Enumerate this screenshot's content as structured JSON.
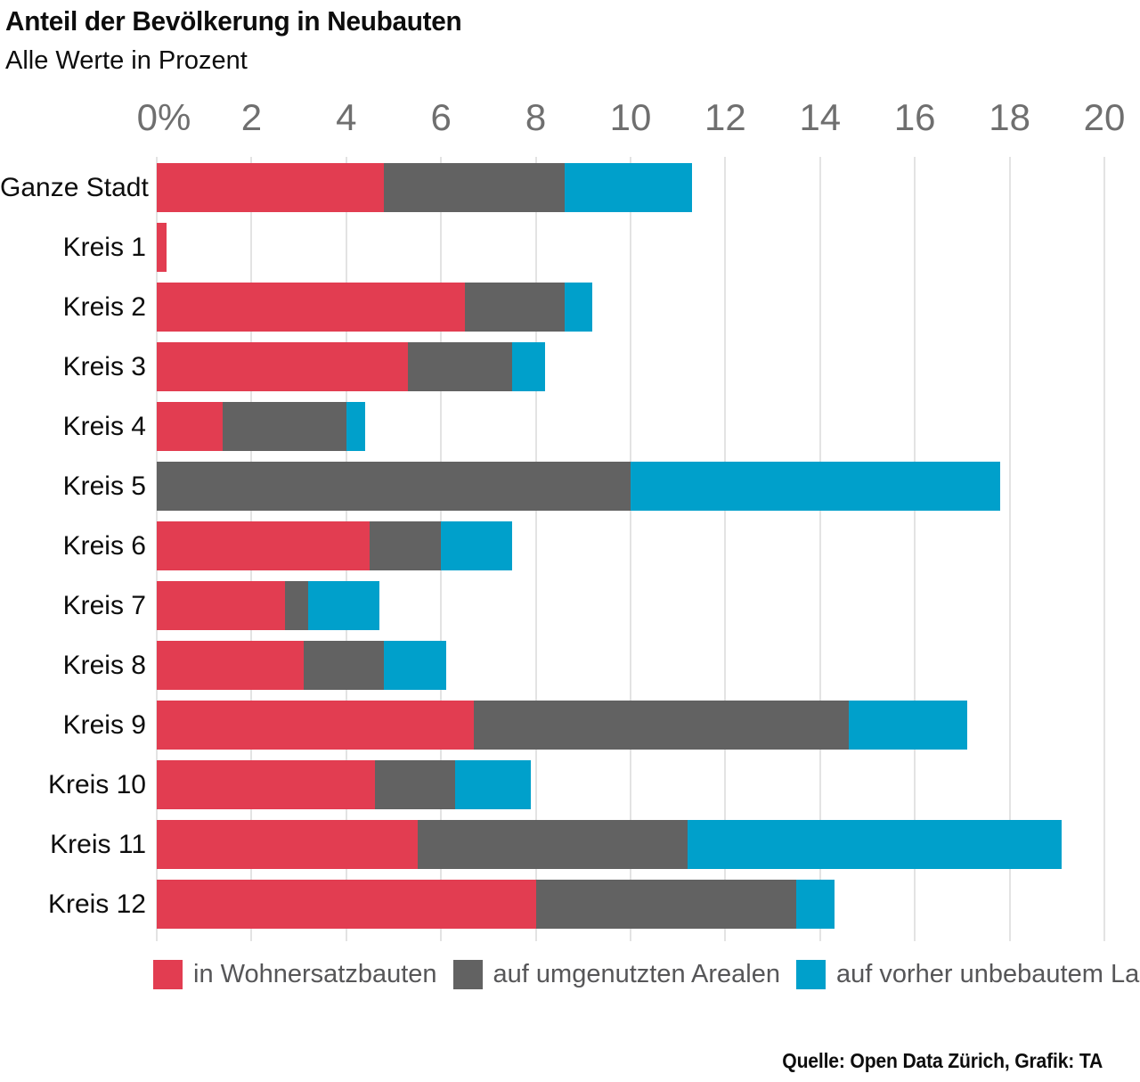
{
  "header": {
    "title": "Anteil der Bevölkerung in Neubauten",
    "subtitle": "Alle Werte in Prozent"
  },
  "footer": {
    "source": "Quelle: Open Data Zürich, Grafik: TA"
  },
  "colors": {
    "red": "#e23d51",
    "gray": "#626262",
    "blue": "#00a0cb"
  },
  "chart_data": {
    "type": "bar",
    "orientation": "horizontal",
    "stacked": true,
    "grid": true,
    "legend_position": "bottom",
    "xlim": [
      0,
      20
    ],
    "x_tick_values": [
      0,
      2,
      4,
      6,
      8,
      10,
      12,
      14,
      16,
      18,
      20
    ],
    "x_tick_labels": [
      "0%",
      "2",
      "4",
      "6",
      "8",
      "10",
      "12",
      "14",
      "16",
      "18",
      "20"
    ],
    "categories": [
      "Ganze Stadt",
      "Kreis 1",
      "Kreis 2",
      "Kreis 3",
      "Kreis 4",
      "Kreis 5",
      "Kreis 6",
      "Kreis 7",
      "Kreis 8",
      "Kreis 9",
      "Kreis 10",
      "Kreis 11",
      "Kreis 12"
    ],
    "series": [
      {
        "name": "in Wohnersatzbauten",
        "color": "#e23d51",
        "values": [
          4.8,
          0.2,
          6.5,
          5.3,
          1.4,
          0,
          4.5,
          2.7,
          3.1,
          6.7,
          4.6,
          5.5,
          8.0
        ]
      },
      {
        "name": "auf umgenutzten Arealen",
        "color": "#626262",
        "values": [
          3.8,
          0,
          2.1,
          2.2,
          2.6,
          10.0,
          1.5,
          0.5,
          1.7,
          7.9,
          1.7,
          5.7,
          5.5
        ]
      },
      {
        "name": "auf vorher unbebautem Land",
        "color": "#00a0cb",
        "values": [
          2.7,
          0,
          0.6,
          0.7,
          0.4,
          7.8,
          1.5,
          1.5,
          1.3,
          2.5,
          1.6,
          7.9,
          0.8
        ]
      }
    ]
  }
}
